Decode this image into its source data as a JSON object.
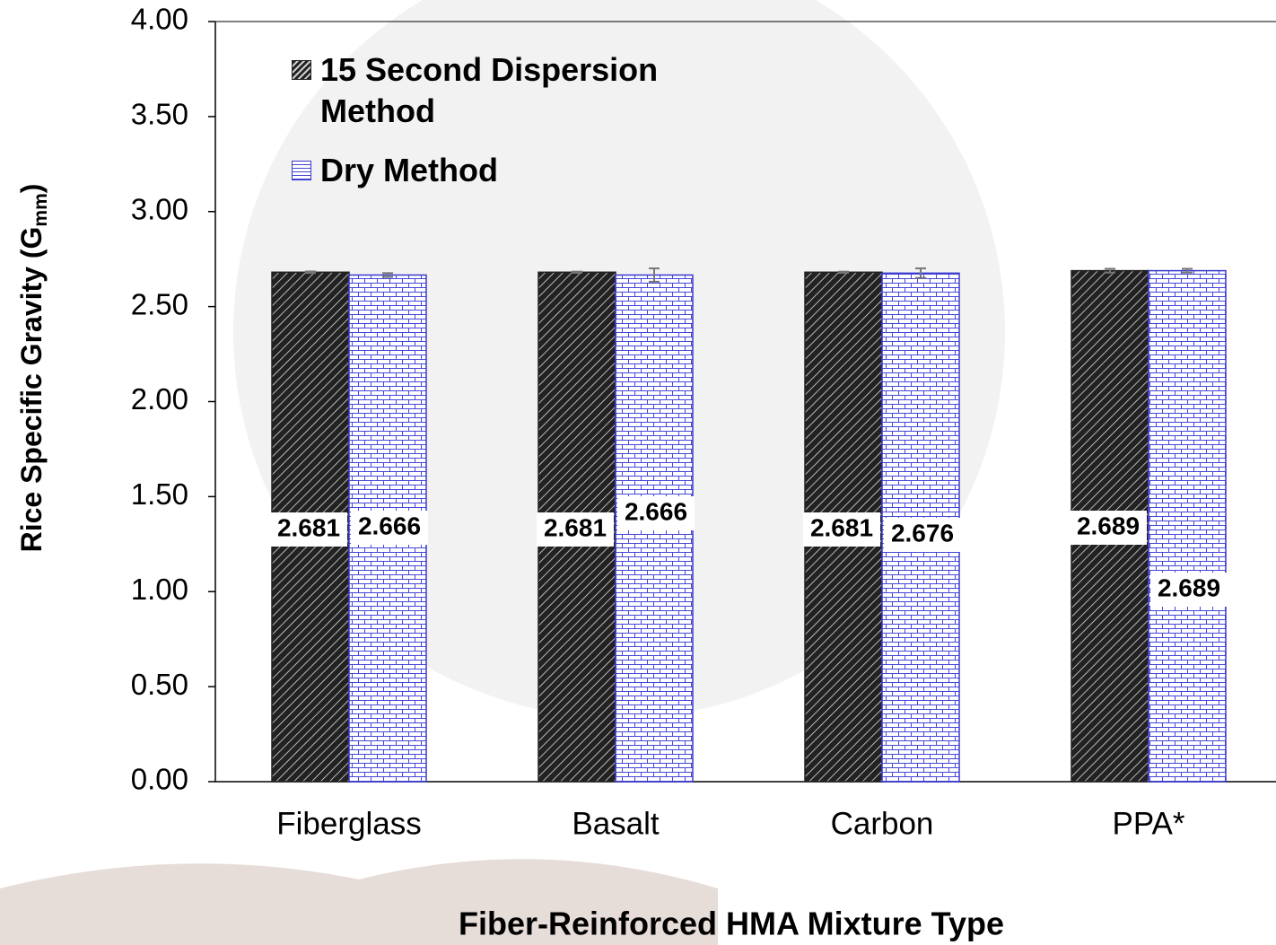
{
  "chart_data": {
    "type": "bar",
    "xlabel": "Fiber-Reinforced HMA Mixture Type",
    "ylabel": {
      "text": "Rice Specific Gravity (G",
      "sub": "mm",
      "end": ")"
    },
    "categories": [
      "Fiberglass",
      "Basalt",
      "Carbon",
      "PPA*"
    ],
    "series": [
      {
        "name": "15 Second Dispersion Method",
        "color": "#222222",
        "values": [
          2.681,
          2.681,
          2.681,
          2.689
        ],
        "errors": [
          0.004,
          0.003,
          0.003,
          0.01
        ]
      },
      {
        "name": "Dry Method",
        "color": "#3a3ad0",
        "values": [
          2.666,
          2.666,
          2.676,
          2.689
        ],
        "errors": [
          0.01,
          0.035,
          0.025,
          0.01
        ]
      }
    ],
    "ylim": [
      0,
      4
    ],
    "yticks": [
      {
        "value": 0,
        "label": "0.00"
      },
      {
        "value": 0.5,
        "label": "0.50"
      },
      {
        "value": 1,
        "label": "1.00"
      },
      {
        "value": 1.5,
        "label": "1.50"
      },
      {
        "value": 2,
        "label": "2.00"
      },
      {
        "value": 2.5,
        "label": "2.50"
      },
      {
        "value": 3,
        "label": "3.00"
      },
      {
        "value": 3.5,
        "label": "3.50"
      },
      {
        "value": 4,
        "label": "4.00"
      }
    ],
    "legend": "upper left"
  }
}
